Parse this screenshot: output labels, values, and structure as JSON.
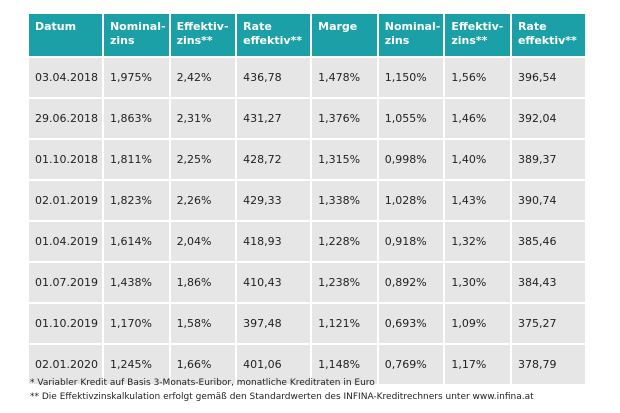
{
  "table": {
    "headers": [
      {
        "l1": "Datum",
        "l2": ""
      },
      {
        "l1": "Nominal-",
        "l2": "zins"
      },
      {
        "l1": "Effektiv-",
        "l2": "zins**"
      },
      {
        "l1": "Rate",
        "l2": "effektiv**"
      },
      {
        "l1": "Marge",
        "l2": ""
      },
      {
        "l1": "Nominal-",
        "l2": "zins"
      },
      {
        "l1": "Effektiv-",
        "l2": "zins**"
      },
      {
        "l1": "Rate",
        "l2": "effektiv**"
      }
    ],
    "rows": [
      [
        "03.04.2018",
        "1,975%",
        "2,42%",
        "436,78",
        "1,478%",
        "1,150%",
        "1,56%",
        "396,54"
      ],
      [
        "29.06.2018",
        "1,863%",
        "2,31%",
        "431,27",
        "1,376%",
        "1,055%",
        "1,46%",
        "392,04"
      ],
      [
        "01.10.2018",
        "1,811%",
        "2,25%",
        "428,72",
        "1,315%",
        "0,998%",
        "1,40%",
        "389,37"
      ],
      [
        "02.01.2019",
        "1,823%",
        "2,26%",
        "429,33",
        "1,338%",
        "1,028%",
        "1,43%",
        "390,74"
      ],
      [
        "01.04.2019",
        "1,614%",
        "2,04%",
        "418,93",
        "1,228%",
        "0,918%",
        "1,32%",
        "385,46"
      ],
      [
        "01.07.2019",
        "1,438%",
        "1,86%",
        "410,43",
        "1,238%",
        "0,892%",
        "1,30%",
        "384,43"
      ],
      [
        "01.10.2019",
        "1,170%",
        "1,58%",
        "397,48",
        "1,121%",
        "0,693%",
        "1,09%",
        "375,27"
      ],
      [
        "02.01.2020",
        "1,245%",
        "1,66%",
        "401,06",
        "1,148%",
        "0,769%",
        "1,17%",
        "378,79"
      ]
    ]
  },
  "footnotes": {
    "note1": "* Variabler Kredit auf Basis 3-Monats-Euribor, monatliche Kreditraten in Euro",
    "note2": "** Die Effektivzinskalkulation erfolgt gemäß den Standardwerten des INFINA-Kreditrechners unter www.infina.at"
  },
  "colors": {
    "header_bg": "#1aa0a6",
    "cell_bg": "#e6e6e6"
  }
}
